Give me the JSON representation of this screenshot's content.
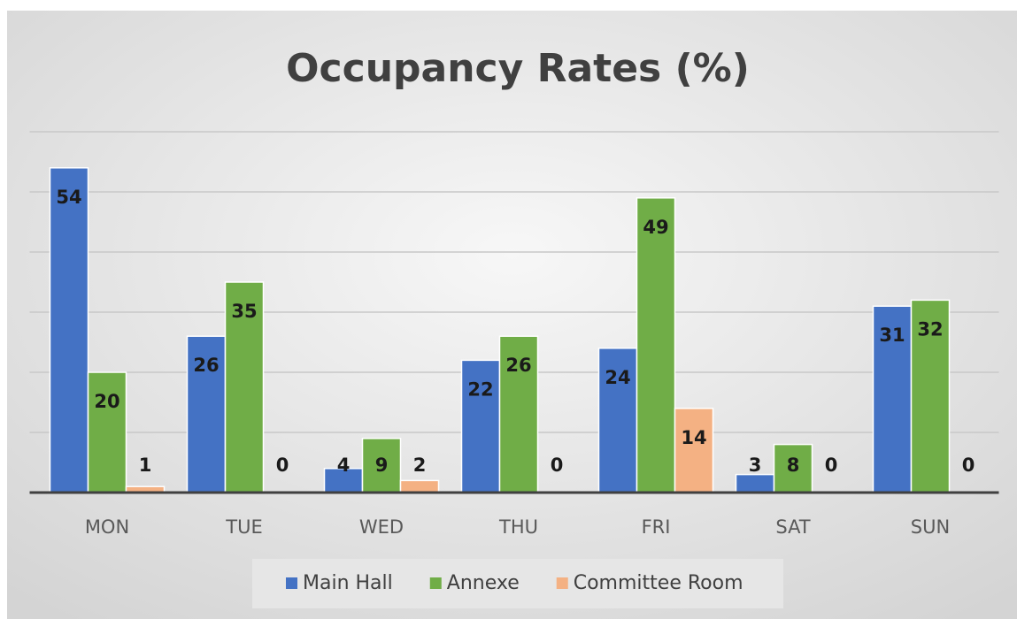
{
  "chart_data": {
    "type": "bar",
    "title": "Occupancy Rates (%)",
    "categories": [
      "MON",
      "TUE",
      "WED",
      "THU",
      "FRI",
      "SAT",
      "SUN"
    ],
    "series": [
      {
        "name": "Main Hall",
        "color": "#4472c4",
        "values": [
          54,
          26,
          4,
          22,
          24,
          3,
          31
        ]
      },
      {
        "name": "Annexe",
        "color": "#70ad47",
        "values": [
          20,
          35,
          9,
          26,
          49,
          8,
          32
        ]
      },
      {
        "name": "Committee Room",
        "color": "#f4b183",
        "values": [
          1,
          0,
          2,
          0,
          14,
          0,
          0
        ]
      }
    ],
    "ylim": [
      0,
      60
    ],
    "yticks": [
      0,
      10,
      20,
      30,
      40,
      50,
      60
    ],
    "grid": true,
    "legend": "bottom"
  }
}
